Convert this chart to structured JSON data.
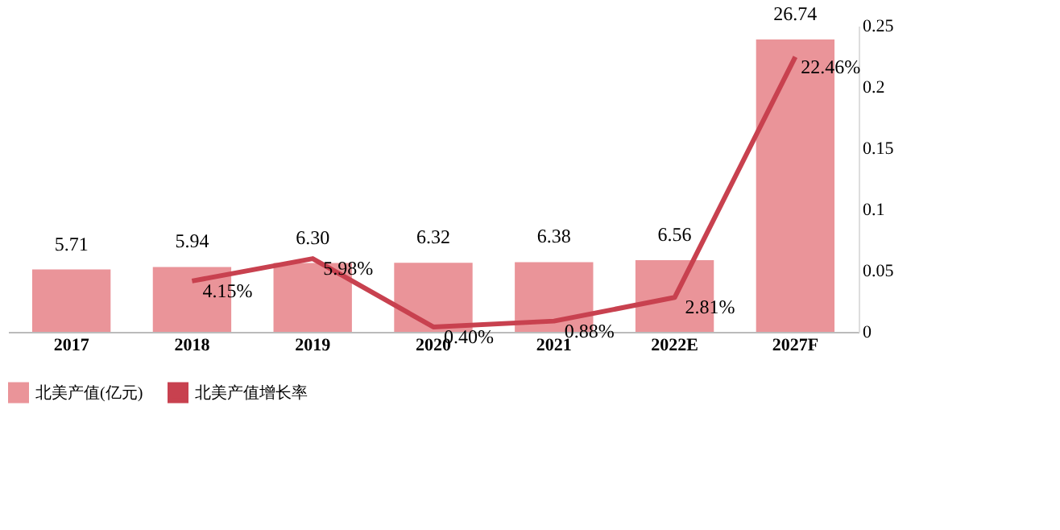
{
  "chart_data": {
    "type": "bar",
    "categories": [
      "2017",
      "2018",
      "2019",
      "2020",
      "2021",
      "2022E",
      "2027F"
    ],
    "series": [
      {
        "name": "北美产值(亿元)",
        "color": "#ea9499",
        "values": [
          5.71,
          5.94,
          6.3,
          6.32,
          6.38,
          6.56,
          26.74
        ],
        "value_labels": [
          "5.71",
          "5.94",
          "6.30",
          "6.32",
          "6.38",
          "6.56",
          "26.74"
        ]
      },
      {
        "name": "北美产值增长率",
        "type": "line",
        "axis": "y2",
        "color": "#c8414f",
        "values": [
          null,
          0.0415,
          0.0598,
          0.004,
          0.0088,
          0.0281,
          0.2246
        ],
        "value_labels": [
          null,
          "4.15%",
          "5.98%",
          "0.40%",
          "0.88%",
          "2.81%",
          "22.46%"
        ]
      }
    ],
    "y2lim": [
      0,
      0.25
    ],
    "y2ticks": [
      0,
      0.05,
      0.1,
      0.15,
      0.2,
      0.25
    ],
    "grid": false,
    "legend": "bottom",
    "marker": "none",
    "line_style": "solid"
  }
}
